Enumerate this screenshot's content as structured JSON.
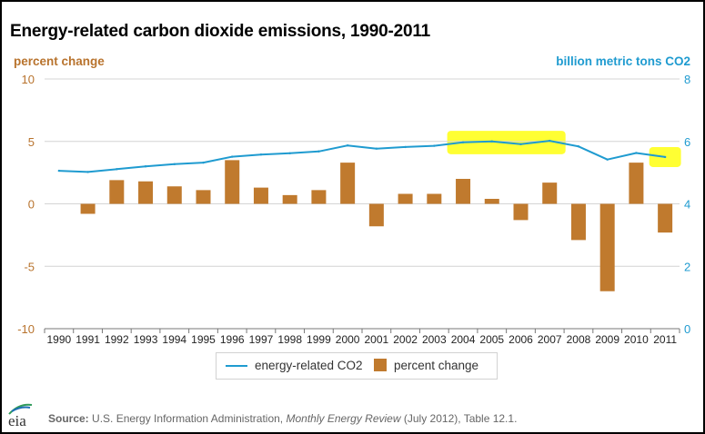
{
  "chart_data": {
    "type": "bar+line",
    "title": "Energy-related carbon dioxide emissions, 1990-2011",
    "categories": [
      "1990",
      "1991",
      "1992",
      "1993",
      "1994",
      "1995",
      "1996",
      "1997",
      "1998",
      "1999",
      "2000",
      "2001",
      "2002",
      "2003",
      "2004",
      "2005",
      "2006",
      "2007",
      "2008",
      "2009",
      "2010",
      "2011"
    ],
    "y_left": {
      "label": "percent change",
      "min": -10,
      "max": 10,
      "ticks": [
        10,
        5,
        0,
        -5,
        -10
      ]
    },
    "y_right": {
      "label": "billion metric tons CO2",
      "min": 0,
      "max": 8,
      "ticks": [
        8,
        6,
        4,
        2,
        0
      ]
    },
    "grid": "horizontal",
    "series": [
      {
        "name": "energy-related CO2",
        "type": "line",
        "axis": "right",
        "color": "#1f9bd0",
        "values": [
          5.06,
          5.02,
          5.11,
          5.2,
          5.27,
          5.32,
          5.51,
          5.58,
          5.62,
          5.68,
          5.87,
          5.77,
          5.82,
          5.86,
          5.97,
          6.0,
          5.91,
          6.02,
          5.84,
          5.42,
          5.63,
          5.5
        ]
      },
      {
        "name": "percent change",
        "type": "bar",
        "axis": "left",
        "color": "#c07a2e",
        "values": [
          null,
          -0.8,
          1.9,
          1.8,
          1.4,
          1.1,
          3.5,
          1.3,
          0.7,
          1.1,
          3.3,
          -1.8,
          0.8,
          0.8,
          2.0,
          0.4,
          -1.3,
          1.7,
          -2.9,
          -7.0,
          3.3,
          -2.3
        ]
      }
    ],
    "highlights": {
      "color": "#ffff33",
      "ranges": [
        {
          "from": "2004",
          "to": "2007"
        },
        {
          "from": "2011",
          "to": "2011"
        }
      ]
    },
    "legend_position": "bottom-center"
  },
  "legend": {
    "line_label": "energy-related CO2",
    "bar_label": "percent change"
  },
  "footer": {
    "logo_text": "eia",
    "source_label": "Source:",
    "source_org": "U.S. Energy Information Administration,",
    "source_pub": "Monthly Energy Review",
    "source_rest": "(July 2012), Table 12.1."
  }
}
